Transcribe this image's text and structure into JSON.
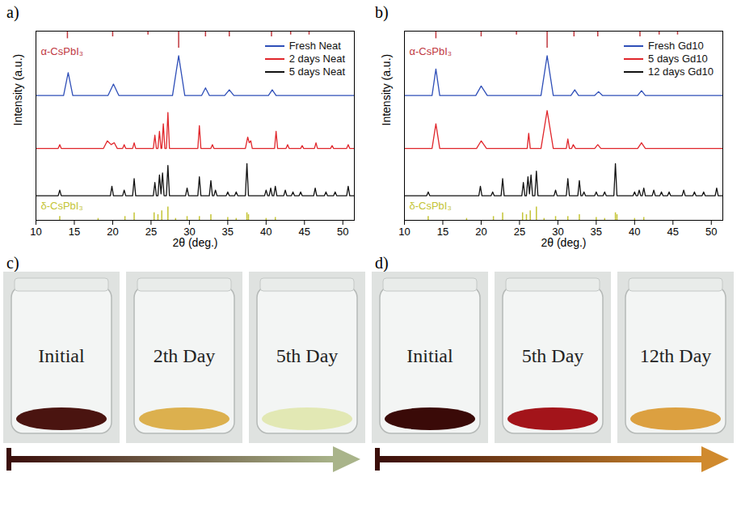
{
  "chart_data": [
    {
      "type": "line",
      "panel": "a)",
      "xlabel": "2θ (deg.)",
      "ylabel": "Intensity (a.u.)",
      "xlim": [
        10,
        51.5
      ],
      "xticks": [
        10,
        15,
        20,
        25,
        30,
        35,
        40,
        45,
        50
      ],
      "ylim": [
        0,
        100
      ],
      "yticks": [],
      "tick_labels": "x",
      "grid": false,
      "legend": "top-right",
      "series": [
        {
          "name": "Fresh Neat",
          "color": "#2f4fb8",
          "x": [
            10,
            13.6,
            14.2,
            14.8,
            19.4,
            20.1,
            20.8,
            27.8,
            28.6,
            29.4,
            31.6,
            32.1,
            32.6,
            34.6,
            35.2,
            35.8,
            40.3,
            40.8,
            41.3,
            51.5
          ],
          "values": [
            66,
            66,
            78,
            66,
            66,
            72,
            66,
            66,
            87,
            66,
            66,
            70,
            66,
            66,
            69,
            66,
            66,
            69,
            66,
            66
          ]
        },
        {
          "name": "2 days Neat",
          "color": "#e0262b",
          "x": [
            10,
            12.9,
            13.1,
            13.3,
            18.8,
            19.3,
            19.8,
            20.2,
            20.6,
            21.3,
            21.5,
            21.7,
            22.6,
            22.8,
            23.0,
            25.3,
            25.5,
            25.7,
            25.9,
            26.1,
            26.3,
            26.4,
            26.6,
            26.8,
            27.0,
            27.2,
            27.4,
            31.1,
            31.3,
            31.5,
            32.8,
            33.0,
            33.2,
            37.3,
            37.6,
            37.8,
            38.0,
            38.2,
            41.1,
            41.3,
            41.5,
            42.6,
            42.8,
            43.0,
            44.5,
            44.7,
            44.9,
            46.3,
            46.5,
            46.7,
            48.4,
            48.6,
            48.8,
            50.5,
            50.7,
            50.9,
            51.5
          ],
          "values": [
            38,
            38,
            40,
            38,
            38,
            42,
            40,
            41,
            38,
            38,
            40,
            38,
            38,
            41,
            38,
            38,
            45,
            38,
            38,
            47,
            38,
            38,
            51,
            38,
            38,
            57,
            38,
            38,
            50,
            38,
            38,
            40,
            38,
            38,
            44,
            41,
            42,
            38,
            38,
            47,
            38,
            38,
            40,
            38,
            38,
            39.5,
            38,
            38,
            41,
            38,
            38,
            39.5,
            38,
            38,
            40,
            38,
            38
          ]
        },
        {
          "name": "5 days Neat",
          "color": "#111111",
          "x": [
            10,
            12.9,
            13.1,
            13.3,
            19.7,
            19.9,
            20.1,
            21.3,
            21.5,
            21.7,
            22.6,
            22.8,
            23.0,
            25.3,
            25.5,
            25.7,
            25.9,
            26.1,
            26.3,
            26.5,
            26.7,
            27.0,
            27.2,
            27.4,
            29.5,
            29.7,
            29.9,
            31.1,
            31.3,
            31.5,
            32.6,
            32.8,
            33.0,
            33.2,
            33.4,
            33.6,
            34.8,
            35.0,
            35.2,
            35.9,
            36.1,
            36.3,
            37.3,
            37.5,
            37.7,
            39.8,
            40.0,
            40.2,
            40.4,
            40.6,
            40.8,
            41.0,
            41.2,
            41.4,
            42.3,
            42.5,
            42.7,
            43.3,
            43.5,
            43.7,
            44.3,
            44.5,
            44.7,
            46.2,
            46.4,
            46.6,
            47.6,
            47.8,
            48.0,
            48.8,
            49.0,
            49.2,
            50.5,
            50.7,
            50.9,
            51.5
          ],
          "values": [
            13,
            13,
            16,
            13,
            13,
            18,
            13,
            13,
            16,
            13,
            13,
            22,
            13,
            13,
            20,
            13,
            13,
            24,
            14,
            25,
            13,
            13,
            29,
            13,
            13,
            17,
            13,
            13,
            23,
            13,
            13,
            21,
            13,
            13,
            16,
            13,
            13,
            15,
            13,
            13,
            15,
            13,
            13,
            30,
            13,
            13,
            16,
            13,
            13,
            17,
            13,
            13,
            18,
            13,
            13,
            16,
            13,
            13,
            15,
            13,
            13,
            15,
            13,
            13,
            17,
            13,
            13,
            15,
            13,
            13,
            15,
            13,
            13,
            18,
            13,
            13
          ]
        },
        {
          "name": "α-CsPbI₃",
          "type": "stick",
          "color": "#c0393f",
          "base": 100,
          "x": [
            14.1,
            20.0,
            24.6,
            28.6,
            32.1,
            35.2,
            40.7,
            43.2,
            45.6
          ],
          "values": [
            96,
            97,
            98,
            91,
            97,
            97,
            97,
            98,
            98
          ]
        },
        {
          "name": "δ-CsPbI₃",
          "type": "stick",
          "color": "#c4c435",
          "base": 0,
          "x": [
            13.1,
            18.1,
            21.6,
            22.8,
            25.4,
            25.9,
            26.4,
            27.2,
            28.2,
            29.7,
            31.3,
            32.8,
            35.0,
            36.1,
            37.5,
            37.7,
            40.0,
            41.2
          ],
          "values": [
            2,
            1,
            2,
            4,
            4,
            3,
            5,
            7,
            1,
            2,
            2,
            3,
            1.5,
            1,
            4,
            3,
            1,
            1.5
          ]
        }
      ]
    },
    {
      "type": "line",
      "panel": "b)",
      "xlabel": "2θ (deg.)",
      "ylabel": "Intensity (a.u.)",
      "xlim": [
        10,
        51.5
      ],
      "xticks": [
        10,
        15,
        20,
        25,
        30,
        35,
        40,
        45,
        50
      ],
      "ylim": [
        0,
        100
      ],
      "yticks": [],
      "tick_labels": "x",
      "grid": false,
      "legend": "top-right",
      "series": [
        {
          "name": "Fresh Gd10",
          "color": "#2f4fb8",
          "x": [
            10,
            13.6,
            14.1,
            14.6,
            19.3,
            20.0,
            20.8,
            27.8,
            28.6,
            29.4,
            31.7,
            32.2,
            32.7,
            34.8,
            35.3,
            35.8,
            40.4,
            40.9,
            41.4,
            51.5
          ],
          "values": [
            66,
            66,
            80,
            66,
            66,
            71,
            66,
            66,
            87,
            66,
            66,
            69,
            66,
            66,
            68,
            66,
            66,
            68.5,
            66,
            66
          ]
        },
        {
          "name": "5 days Gd10",
          "color": "#e0262b",
          "x": [
            10,
            13.6,
            14.1,
            14.6,
            19.4,
            20.0,
            20.7,
            26.0,
            26.2,
            26.4,
            27.8,
            28.6,
            29.4,
            31.1,
            31.3,
            31.5,
            31.8,
            32.0,
            32.3,
            34.8,
            35.2,
            35.6,
            40.4,
            40.9,
            41.4,
            51.5
          ],
          "values": [
            38,
            38,
            51,
            38,
            38,
            42,
            38,
            38,
            46,
            38,
            38,
            58,
            38,
            38,
            43,
            38,
            38,
            40,
            38,
            38,
            40,
            38,
            38,
            41,
            38,
            38
          ]
        },
        {
          "name": "12 days Gd10",
          "color": "#111111",
          "x": [
            10,
            12.9,
            13.1,
            13.3,
            19.7,
            19.9,
            20.1,
            21.3,
            21.5,
            21.7,
            22.6,
            22.8,
            23.0,
            25.3,
            25.5,
            25.7,
            25.9,
            26.1,
            26.3,
            26.5,
            26.7,
            27.0,
            27.2,
            27.4,
            29.5,
            29.7,
            29.9,
            31.1,
            31.3,
            31.5,
            32.6,
            32.8,
            33.0,
            33.2,
            33.4,
            33.6,
            34.8,
            35.0,
            35.2,
            35.9,
            36.1,
            36.3,
            37.3,
            37.5,
            37.7,
            39.8,
            40.0,
            40.2,
            40.4,
            40.6,
            40.8,
            41.0,
            41.2,
            41.4,
            42.3,
            42.5,
            42.7,
            43.3,
            43.5,
            43.7,
            44.3,
            44.5,
            44.7,
            46.2,
            46.4,
            46.6,
            47.6,
            47.8,
            48.0,
            48.8,
            49.0,
            49.2,
            50.5,
            50.7,
            50.9,
            51.5
          ],
          "values": [
            13,
            13,
            15,
            13,
            13,
            18,
            13,
            13,
            15,
            13,
            13,
            22,
            13,
            13,
            20,
            13,
            13,
            23,
            14,
            24,
            13,
            13,
            26,
            13,
            13,
            16,
            13,
            13,
            22,
            13,
            13,
            21,
            13,
            13,
            15,
            13,
            13,
            15,
            13,
            13,
            15,
            13,
            13,
            30,
            13,
            13,
            15,
            13,
            13,
            16,
            13,
            13,
            17,
            13,
            13,
            16,
            13,
            13,
            15,
            13,
            13,
            15,
            13,
            13,
            16,
            13,
            13,
            15,
            13,
            13,
            15,
            13,
            13,
            17,
            13,
            13
          ]
        },
        {
          "name": "α-CsPbI₃",
          "type": "stick",
          "color": "#c0393f",
          "base": 100,
          "x": [
            14.1,
            20.0,
            24.6,
            28.6,
            32.1,
            35.2,
            40.7,
            43.2,
            45.6
          ],
          "values": [
            96,
            97,
            98,
            91,
            97,
            97,
            97,
            98,
            98
          ]
        },
        {
          "name": "δ-CsPbI₃",
          "type": "stick",
          "color": "#c4c435",
          "base": 0,
          "x": [
            13.1,
            18.1,
            21.6,
            22.8,
            25.4,
            25.9,
            26.4,
            27.2,
            28.2,
            29.7,
            31.3,
            32.8,
            35.0,
            36.1,
            37.5,
            37.7,
            40.0,
            41.2
          ],
          "values": [
            2,
            1,
            2,
            4,
            4,
            3,
            5,
            7,
            1,
            2,
            2,
            3,
            1.5,
            1,
            4,
            3,
            1,
            1.5
          ]
        }
      ]
    }
  ],
  "photo_panels": [
    {
      "panel": "c)",
      "arrow_colors": [
        "#3a0e0a",
        "#a9b48a"
      ],
      "photos": [
        {
          "label": "Initial",
          "color": "#4a1410"
        },
        {
          "label": "2th Day",
          "color": "#dcb04e"
        },
        {
          "label": "5th Day",
          "color": "#e2e8b4"
        }
      ]
    },
    {
      "panel": "d)",
      "arrow_colors": [
        "#3a0e0a",
        "#d08a2e"
      ],
      "photos": [
        {
          "label": "Initial",
          "color": "#3a0a08"
        },
        {
          "label": "5th Day",
          "color": "#a3141a"
        },
        {
          "label": "12th Day",
          "color": "#dca040"
        }
      ]
    }
  ]
}
